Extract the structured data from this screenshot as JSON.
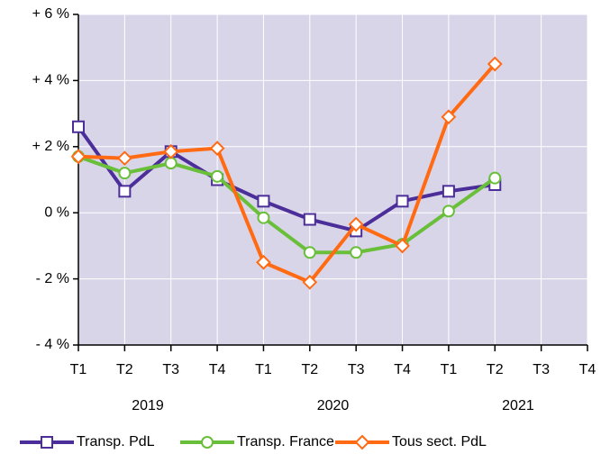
{
  "chart_data": {
    "type": "line",
    "categories": [
      "T1",
      "T2",
      "T3",
      "T4",
      "T1",
      "T2",
      "T3",
      "T4",
      "T1",
      "T2",
      "T3",
      "T4"
    ],
    "years": [
      "2019",
      "2020",
      "2021"
    ],
    "series": [
      {
        "name": "Transp. PdL",
        "color": "#4b2e99",
        "marker": "square",
        "values": [
          2.6,
          0.65,
          1.85,
          1.0,
          0.35,
          -0.2,
          -0.55,
          0.35,
          0.65,
          0.85,
          null,
          null
        ]
      },
      {
        "name": "Transp. France",
        "color": "#6abf3a",
        "marker": "circle",
        "values": [
          1.7,
          1.2,
          1.5,
          1.1,
          -0.15,
          -1.2,
          -1.2,
          -0.95,
          0.05,
          1.05,
          null,
          null
        ]
      },
      {
        "name": "Tous sect. PdL",
        "color": "#ff6a13",
        "marker": "diamond",
        "values": [
          1.7,
          1.65,
          1.85,
          1.95,
          -1.5,
          -2.1,
          -0.35,
          -1.0,
          2.9,
          4.5,
          null,
          null
        ]
      }
    ],
    "ylim": [
      -4,
      6
    ],
    "yticks": [
      {
        "value": -4,
        "label": "- 4 %"
      },
      {
        "value": -2,
        "label": "- 2 %"
      },
      {
        "value": 0,
        "label": "0 %"
      },
      {
        "value": 2,
        "label": "+ 2 %"
      },
      {
        "value": 4,
        "label": "+ 4 %"
      },
      {
        "value": 6,
        "label": "+ 6 %"
      }
    ],
    "grid": true,
    "legend": "bottom"
  }
}
